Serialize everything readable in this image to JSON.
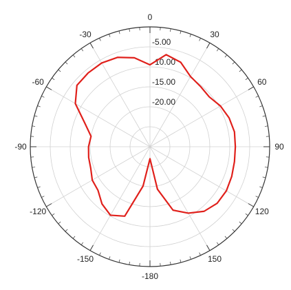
{
  "chart_data": {
    "type": "polar-line",
    "title": "",
    "angular_axis": {
      "direction": "clockwise",
      "zero_position": "top",
      "tick_labels": [
        "0",
        "30",
        "60",
        "90",
        "120",
        "150",
        "-180",
        "-150",
        "-120",
        "-90",
        "-60",
        "-30"
      ],
      "tick_angles": [
        0,
        30,
        60,
        90,
        120,
        150,
        180,
        210,
        240,
        270,
        300,
        330
      ],
      "minor_tick_step_deg": 5
    },
    "radial_axis": {
      "range": [
        -30,
        0
      ],
      "gridlines": [
        -25,
        -20,
        -15,
        -10,
        -5,
        0
      ],
      "tick_labels": [
        "-20.00",
        "-15.00",
        "-10.00",
        "-5.00"
      ],
      "tick_values": [
        -20,
        -15,
        -10,
        -5
      ],
      "label_angle_deg": 0
    },
    "grid": true,
    "series": [
      {
        "color": "#e0201b",
        "points": [
          {
            "theta": 0,
            "r": -9.5
          },
          {
            "theta": 10,
            "r": -6.6
          },
          {
            "theta": 20,
            "r": -7.5
          },
          {
            "theta": 30,
            "r": -9.7
          },
          {
            "theta": 40,
            "r": -10.3
          },
          {
            "theta": 50,
            "r": -10.6
          },
          {
            "theta": 60,
            "r": -9.6
          },
          {
            "theta": 70,
            "r": -8.9
          },
          {
            "theta": 80,
            "r": -8.5
          },
          {
            "theta": 90,
            "r": -8.6
          },
          {
            "theta": 100,
            "r": -8.5
          },
          {
            "theta": 110,
            "r": -8.2
          },
          {
            "theta": 120,
            "r": -7.9
          },
          {
            "theta": 130,
            "r": -8.0
          },
          {
            "theta": 140,
            "r": -8.9
          },
          {
            "theta": 150,
            "r": -10.8
          },
          {
            "theta": 160,
            "r": -13.1
          },
          {
            "theta": 170,
            "r": -19.2
          },
          {
            "theta": 180,
            "r": -27.0
          },
          {
            "theta": 190,
            "r": -20.0
          },
          {
            "theta": 200,
            "r": -11.5
          },
          {
            "theta": 210,
            "r": -10.2
          },
          {
            "theta": 220,
            "r": -11.3
          },
          {
            "theta": 230,
            "r": -13.0
          },
          {
            "theta": 240,
            "r": -13.3
          },
          {
            "theta": 250,
            "r": -14.2
          },
          {
            "theta": 260,
            "r": -14.4
          },
          {
            "theta": 270,
            "r": -14.6
          },
          {
            "theta": 280,
            "r": -15.0
          },
          {
            "theta": 290,
            "r": -12.6
          },
          {
            "theta": 300,
            "r": -8.4
          },
          {
            "theta": 310,
            "r": -6.1
          },
          {
            "theta": 320,
            "r": -5.9
          },
          {
            "theta": 330,
            "r": -5.8
          },
          {
            "theta": 340,
            "r": -6.2
          },
          {
            "theta": 350,
            "r": -7.4
          }
        ]
      }
    ]
  }
}
